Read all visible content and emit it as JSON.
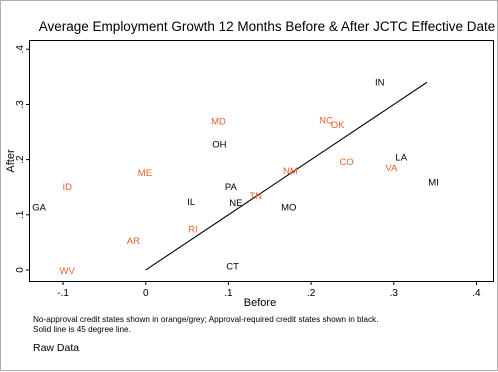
{
  "chart_data": {
    "type": "scatter",
    "title": "Average Employment Growth 12 Months Before & After JCTC Effective Date",
    "xlabel": "Before",
    "ylabel": "After",
    "xlim": [
      -0.14,
      0.42
    ],
    "ylim": [
      -0.02,
      0.415
    ],
    "x_ticks": [
      {
        "value": -0.1,
        "label": "-.1"
      },
      {
        "value": 0,
        "label": "0"
      },
      {
        "value": 0.1,
        "label": ".1"
      },
      {
        "value": 0.2,
        "label": ".2"
      },
      {
        "value": 0.3,
        "label": ".3"
      },
      {
        "value": 0.4,
        "label": ".4"
      }
    ],
    "y_ticks": [
      {
        "value": 0,
        "label": "0"
      },
      {
        "value": 0.1,
        "label": ".1"
      },
      {
        "value": 0.2,
        "label": ".2"
      },
      {
        "value": 0.3,
        "label": ".3"
      },
      {
        "value": 0.4,
        "label": ".4"
      }
    ],
    "grid": false,
    "reference_line": {
      "from": [
        0,
        0
      ],
      "to": [
        0.34,
        0.34
      ]
    },
    "colors": {
      "no_approval": "#e8602c",
      "approval_required": "#000000"
    },
    "series": [
      {
        "name": "No-approval credit states",
        "color": "#e8602c",
        "points": [
          {
            "label": "MD",
            "x": 0.088,
            "y": 0.27
          },
          {
            "label": "NC",
            "x": 0.218,
            "y": 0.272
          },
          {
            "label": "OK",
            "x": 0.232,
            "y": 0.264
          },
          {
            "label": "ID",
            "x": -0.095,
            "y": 0.151
          },
          {
            "label": "ME",
            "x": -0.001,
            "y": 0.177
          },
          {
            "label": "NM",
            "x": 0.175,
            "y": 0.18
          },
          {
            "label": "CO",
            "x": 0.243,
            "y": 0.197
          },
          {
            "label": "VA",
            "x": 0.297,
            "y": 0.186
          },
          {
            "label": "TN",
            "x": 0.133,
            "y": 0.135
          },
          {
            "label": "RI",
            "x": 0.057,
            "y": 0.074
          },
          {
            "label": "AR",
            "x": -0.015,
            "y": 0.053
          },
          {
            "label": "WV",
            "x": -0.095,
            "y": -0.001
          }
        ]
      },
      {
        "name": "Approval-required credit states",
        "color": "#000000",
        "points": [
          {
            "label": "IN",
            "x": 0.283,
            "y": 0.341
          },
          {
            "label": "OH",
            "x": 0.089,
            "y": 0.228
          },
          {
            "label": "LA",
            "x": 0.309,
            "y": 0.205
          },
          {
            "label": "MI",
            "x": 0.348,
            "y": 0.159
          },
          {
            "label": "PA",
            "x": 0.103,
            "y": 0.151
          },
          {
            "label": "IL",
            "x": 0.055,
            "y": 0.124
          },
          {
            "label": "NE",
            "x": 0.109,
            "y": 0.122
          },
          {
            "label": "MO",
            "x": 0.173,
            "y": 0.114
          },
          {
            "label": "GA",
            "x": -0.129,
            "y": 0.114
          },
          {
            "label": "CT",
            "x": 0.105,
            "y": 0.007
          }
        ]
      }
    ]
  },
  "notes": {
    "line1": "No-approval credit states shown in orange/grey; Approval-required credit states shown in black.",
    "line2": "Solid line is 45 degree line.",
    "raw": "Raw Data"
  }
}
